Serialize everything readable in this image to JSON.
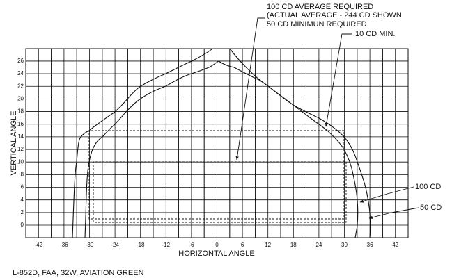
{
  "diagram": {
    "annotations": [
      "100 CD AVERAGE REQUIRED",
      "(ACTUAL AVERAGE - 244 CD SHOWN",
      "50 CD MINIMUN REQUIRED",
      "10 CD MIN.",
      "100 CD",
      "50 CD"
    ],
    "x_axis_label": "HORIZONTAL ANGLE",
    "y_axis_label": "VERTICAL ANGLE",
    "xticks": [
      -42,
      -36,
      -30,
      -24,
      -18,
      -12,
      -6,
      0,
      6,
      12,
      18,
      24,
      30,
      36,
      42
    ],
    "yticks": [
      0,
      2,
      4,
      6,
      8,
      10,
      12,
      14,
      16,
      18,
      20,
      22,
      24,
      26
    ],
    "caption": "L-852D, FAA, 32W, AVIATION GREEN"
  }
}
